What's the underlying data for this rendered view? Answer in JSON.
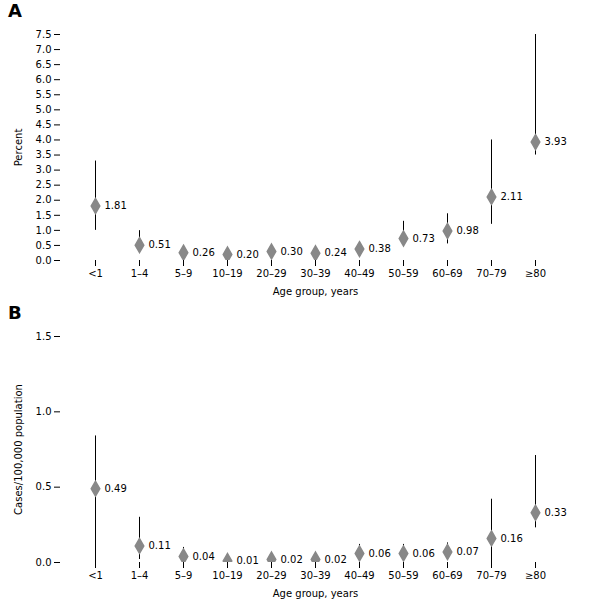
{
  "chart_data": [
    {
      "type": "scatter",
      "title": "A",
      "categories": [
        "<1",
        "1–4",
        "5–9",
        "10–19",
        "20–29",
        "30–39",
        "40–49",
        "50–59",
        "60–69",
        "70–79",
        "≥80"
      ],
      "values": [
        1.81,
        0.51,
        0.26,
        0.2,
        0.3,
        0.24,
        0.38,
        0.73,
        0.98,
        2.11,
        3.93
      ],
      "value_labels": [
        "1.81",
        "0.51",
        "0.26",
        "0.20",
        "0.30",
        "0.24",
        "0.38",
        "0.73",
        "0.98",
        "2.11",
        "3.93"
      ],
      "err_low": [
        0.81,
        0.28,
        0.14,
        0.1,
        0.15,
        0.12,
        0.16,
        0.23,
        0.43,
        0.91,
        0.43
      ],
      "err_high": [
        1.49,
        0.48,
        0.16,
        0.12,
        0.18,
        0.12,
        0.24,
        0.57,
        0.57,
        1.89,
        3.57
      ],
      "xlabel": "Age group, years",
      "ylabel": "Percent",
      "ylim": [
        0,
        7.5
      ],
      "yticks": [
        {
          "value": 0,
          "label": "0.0"
        },
        0.5,
        {
          "value": 1,
          "label": "1.0"
        },
        1.5,
        {
          "value": 2,
          "label": "2.0"
        },
        2.5,
        {
          "value": 3,
          "label": "3.0"
        },
        3.5,
        {
          "value": 4,
          "label": "4.0"
        },
        4.5,
        {
          "value": 5,
          "label": "5.0"
        },
        5.5,
        {
          "value": 6,
          "label": "6.0"
        },
        6.5,
        {
          "value": 7,
          "label": "7.0"
        },
        7.5
      ],
      "color": "#888888",
      "marker": "diamond",
      "data_labels": true,
      "grid": false
    },
    {
      "type": "scatter",
      "title": "B",
      "categories": [
        "<1",
        "1–4",
        "5–9",
        "10–19",
        "20–29",
        "30–39",
        "40–49",
        "50–59",
        "60–69",
        "70–79",
        "≥80"
      ],
      "values": [
        0.49,
        0.11,
        0.04,
        0.01,
        0.02,
        0.02,
        0.06,
        0.06,
        0.07,
        0.16,
        0.33
      ],
      "err_low": [
        0.49,
        0.09,
        0.03,
        0.005,
        0.01,
        0.01,
        0.04,
        0.04,
        0.05,
        0.16,
        0.1
      ],
      "err_high": [
        0.35,
        0.19,
        0.06,
        0.01,
        0.01,
        0.01,
        0.06,
        0.06,
        0.06,
        0.26,
        0.38
      ],
      "xlabel": "Age group, years",
      "ylabel": "Cases/100,000 population",
      "ylim": [
        0,
        1.5
      ],
      "yticks": [
        {
          "value": 0,
          "label": "0.0"
        },
        0.5,
        {
          "value": 1,
          "label": "1.0"
        },
        1.5
      ],
      "color": "#888888",
      "marker": "diamond",
      "data_labels": true,
      "grid": false
    }
  ]
}
